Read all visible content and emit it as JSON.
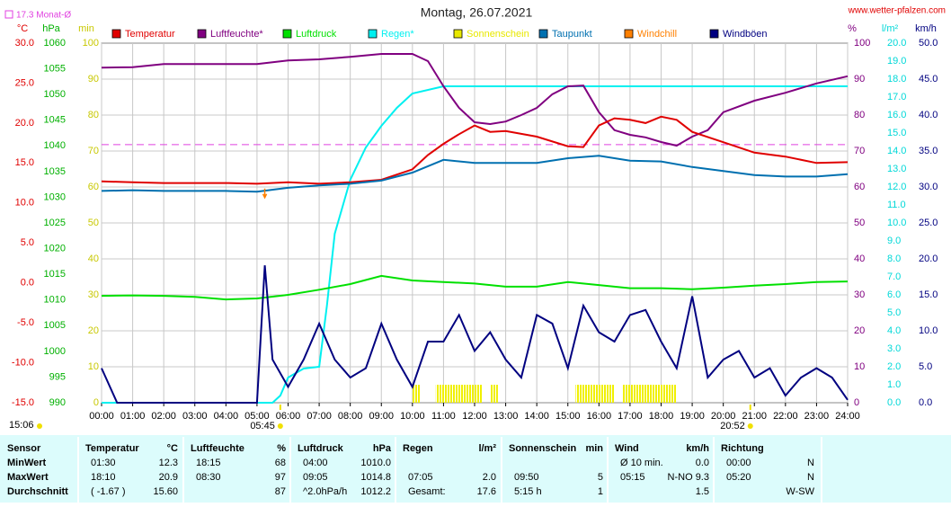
{
  "chart_data": {
    "type": "line",
    "title": "Montag, 26.07.2021",
    "source": "www.wetter-pfalzen.com",
    "xlim": [
      0,
      24
    ],
    "xticks": [
      {
        "value": 0,
        "label": "00:00"
      },
      {
        "value": 1,
        "label": "01:00"
      },
      {
        "value": 2,
        "label": "02:00"
      },
      {
        "value": 3,
        "label": "03:00"
      },
      {
        "value": 4,
        "label": "04:00"
      },
      {
        "value": 5,
        "label": "05:00"
      },
      {
        "value": 6,
        "label": "06:00"
      },
      {
        "value": 7,
        "label": "07:00"
      },
      {
        "value": 8,
        "label": "08:00"
      },
      {
        "value": 9,
        "label": "09:00"
      },
      {
        "value": 10,
        "label": "10:00"
      },
      {
        "value": 11,
        "label": "11:00"
      },
      {
        "value": 12,
        "label": "12:00"
      },
      {
        "value": 13,
        "label": "13:00"
      },
      {
        "value": 14,
        "label": "14:00"
      },
      {
        "value": 15,
        "label": "15:00"
      },
      {
        "value": 16,
        "label": "16:00"
      },
      {
        "value": 17,
        "label": "17:00"
      },
      {
        "value": 18,
        "label": "18:00"
      },
      {
        "value": 19,
        "label": "19:00"
      },
      {
        "value": 20,
        "label": "20:00"
      },
      {
        "value": 21,
        "label": "21:00"
      },
      {
        "value": 22,
        "label": "22:00"
      },
      {
        "value": 23,
        "label": "23:00"
      },
      {
        "value": 24,
        "label": "24:00"
      }
    ],
    "axes": [
      {
        "unit": "°C",
        "color": "#e00000",
        "lim": [
          -15,
          30
        ],
        "ticks": [
          {
            "value": 30,
            "label": "30.0"
          },
          {
            "value": 25,
            "label": "25.0"
          },
          {
            "value": 20,
            "label": "20.0"
          },
          {
            "value": 15,
            "label": "15.0"
          },
          {
            "value": 10,
            "label": "10.0"
          },
          {
            "value": 5,
            "label": "5.0"
          },
          {
            "value": 0,
            "label": "0.0"
          },
          {
            "value": -5,
            "label": "-5.0"
          },
          {
            "value": -10,
            "label": "-10.0"
          },
          {
            "value": -15,
            "label": "-15.0"
          }
        ]
      },
      {
        "unit": "hPa",
        "color": "#00b000",
        "lim": [
          990,
          1060
        ],
        "ticks": [
          990,
          995,
          1000,
          1005,
          1010,
          1015,
          1020,
          1025,
          1030,
          1035,
          1040,
          1045,
          1050,
          1055,
          1060
        ]
      },
      {
        "unit": "min",
        "color": "#c8c800",
        "lim": [
          0,
          100
        ],
        "ticks": [
          0,
          10,
          20,
          30,
          40,
          50,
          60,
          70,
          80,
          90,
          100
        ]
      },
      {
        "unit": "%",
        "color": "#800080",
        "lim": [
          0,
          100
        ],
        "ticks": [
          0,
          10,
          20,
          30,
          40,
          50,
          60,
          70,
          80,
          90,
          100
        ]
      },
      {
        "unit": "l/m²",
        "color": "#00d8d8",
        "lim": [
          0,
          20
        ],
        "ticks": [
          {
            "value": 0,
            "label": "0.0"
          },
          {
            "value": 1,
            "label": "1.0"
          },
          {
            "value": 2,
            "label": "2.0"
          },
          {
            "value": 3,
            "label": "3.0"
          },
          {
            "value": 4,
            "label": "4.0"
          },
          {
            "value": 5,
            "label": "5.0"
          },
          {
            "value": 6,
            "label": "6.0"
          },
          {
            "value": 7,
            "label": "7.0"
          },
          {
            "value": 8,
            "label": "8.0"
          },
          {
            "value": 9,
            "label": "9.0"
          },
          {
            "value": 10,
            "label": "10.0"
          },
          {
            "value": 11,
            "label": "11.0"
          },
          {
            "value": 12,
            "label": "12.0"
          },
          {
            "value": 13,
            "label": "13.0"
          },
          {
            "value": 14,
            "label": "14.0"
          },
          {
            "value": 15,
            "label": "15.0"
          },
          {
            "value": 16,
            "label": "16.0"
          },
          {
            "value": 17,
            "label": "17.0"
          },
          {
            "value": 18,
            "label": "18.0"
          },
          {
            "value": 19,
            "label": "19.0"
          },
          {
            "value": 20,
            "label": "20.0"
          }
        ]
      },
      {
        "unit": "km/h",
        "color": "#000080",
        "lim": [
          0,
          50
        ],
        "ticks": [
          {
            "value": 0,
            "label": "0.0"
          },
          {
            "value": 5,
            "label": "5.0"
          },
          {
            "value": 10,
            "label": "10.0"
          },
          {
            "value": 15,
            "label": "15.0"
          },
          {
            "value": 20,
            "label": "20.0"
          },
          {
            "value": 25,
            "label": "25.0"
          },
          {
            "value": 30,
            "label": "30.0"
          },
          {
            "value": 35,
            "label": "35.0"
          },
          {
            "value": 40,
            "label": "40.0"
          },
          {
            "value": 45,
            "label": "45.0"
          },
          {
            "value": 50,
            "label": "50.0"
          }
        ]
      }
    ],
    "grid": true,
    "monthly_mean": {
      "value": 17.3,
      "label": "17.3 Monat-Ø",
      "color": "#e040e0",
      "axis": 0
    },
    "series": [
      {
        "name": "Temperatur",
        "color": "#e00000",
        "type": "line",
        "axis": 0,
        "x": [
          0,
          1,
          2,
          3,
          4,
          5,
          6,
          7,
          8,
          9,
          10,
          10.5,
          11,
          11.5,
          12,
          12.5,
          13,
          14,
          15,
          15.5,
          16,
          16.5,
          17,
          17.5,
          18,
          18.5,
          19,
          20,
          21,
          22,
          23,
          24
        ],
        "values": [
          12.7,
          12.6,
          12.5,
          12.5,
          12.5,
          12.4,
          12.6,
          12.4,
          12.6,
          12.9,
          14.2,
          16.0,
          17.4,
          18.6,
          19.7,
          18.9,
          19.0,
          18.3,
          17.1,
          17.0,
          19.7,
          20.6,
          20.4,
          20.0,
          20.8,
          20.4,
          18.9,
          17.6,
          16.3,
          15.8,
          15.0,
          15.1
        ]
      },
      {
        "name": "Luftfeuchte*",
        "color": "#800080",
        "type": "line",
        "axis": 3,
        "x": [
          0,
          1,
          2,
          3,
          4,
          5,
          6,
          7,
          8,
          9,
          10,
          10.5,
          11,
          11.5,
          12,
          12.5,
          13,
          13.5,
          14,
          14.5,
          15,
          15.5,
          16,
          16.5,
          17,
          17.5,
          18,
          18.5,
          19,
          19.5,
          20,
          21,
          22,
          23,
          24
        ],
        "values": [
          93.2,
          93.3,
          94.2,
          94.2,
          94.2,
          94.2,
          95.2,
          95.5,
          96.2,
          97,
          97,
          95,
          88,
          82,
          78,
          77.5,
          78.2,
          80,
          82,
          85.8,
          88,
          88.2,
          80.8,
          75.8,
          74.5,
          73.8,
          72.5,
          71.5,
          74,
          75.8,
          80.8,
          84,
          86.2,
          88.8,
          90.8
        ]
      },
      {
        "name": "Luftdruck",
        "color": "#00e000",
        "type": "line",
        "axis": 1,
        "x": [
          0,
          1,
          2,
          3,
          4,
          5,
          6,
          7,
          8,
          9,
          10,
          11,
          12,
          13,
          14,
          15,
          16,
          17,
          18,
          19,
          20,
          21,
          22,
          23,
          24
        ],
        "values": [
          1010.8,
          1010.9,
          1010.8,
          1010.6,
          1010.1,
          1010.3,
          1011,
          1012,
          1013.1,
          1014.7,
          1013.8,
          1013.5,
          1013.2,
          1012.6,
          1012.6,
          1013.5,
          1012.9,
          1012.3,
          1012.3,
          1012.1,
          1012.4,
          1012.8,
          1013.1,
          1013.5,
          1013.6
        ]
      },
      {
        "name": "Regen*",
        "color": "#00f0f0",
        "type": "line",
        "axis": 4,
        "x": [
          0,
          5.5,
          5.75,
          6,
          6.5,
          7,
          7.25,
          7.5,
          8,
          8.5,
          9,
          9.5,
          10,
          11,
          24
        ],
        "values": [
          0,
          0,
          0.4,
          1.4,
          1.9,
          2.0,
          5.4,
          9.4,
          12.4,
          14.2,
          15.4,
          16.4,
          17.2,
          17.6,
          17.6
        ]
      },
      {
        "name": "Sonnenschein",
        "color": "#e8e800",
        "type": "bar",
        "axis": 2,
        "x": [
          10.0,
          10.75,
          12.5,
          15.25,
          16.75
        ],
        "x_end": [
          10.25,
          12.25,
          12.75,
          16.5,
          18.5
        ],
        "values": [
          5,
          5,
          5,
          5,
          5
        ]
      },
      {
        "name": "Taupunkt",
        "color": "#0070b0",
        "type": "line",
        "axis": 0,
        "x": [
          0,
          1,
          2,
          3,
          4,
          5,
          6,
          7,
          8,
          9,
          10,
          11,
          12,
          13,
          14,
          15,
          16,
          17,
          18,
          19,
          20,
          21,
          22,
          23,
          24
        ],
        "values": [
          11.5,
          11.6,
          11.5,
          11.5,
          11.5,
          11.4,
          11.9,
          12.2,
          12.4,
          12.8,
          13.8,
          15.4,
          15.0,
          15.0,
          15.0,
          15.6,
          15.9,
          15.3,
          15.2,
          14.5,
          14.0,
          13.5,
          13.3,
          13.3,
          13.6
        ]
      },
      {
        "name": "Windchill",
        "color": "#ff8000",
        "type": "point",
        "axis": 0,
        "x": [
          5.25
        ],
        "values": [
          11.8
        ]
      },
      {
        "name": "Windböen",
        "color": "#000080",
        "type": "line",
        "axis": 5,
        "x": [
          0,
          0.5,
          1,
          1.5,
          2,
          2.5,
          3,
          3.5,
          4,
          4.5,
          5,
          5.25,
          5.5,
          6,
          6.5,
          7,
          7.5,
          8,
          8.5,
          9,
          9.5,
          10,
          10.5,
          11,
          11.5,
          12,
          12.5,
          13,
          13.5,
          14,
          14.5,
          15,
          15.5,
          16,
          16.5,
          17,
          17.5,
          18,
          18.5,
          19,
          19.5,
          20,
          20.5,
          21,
          21.5,
          22,
          22.5,
          23,
          23.5,
          24
        ],
        "values": [
          4.8,
          0,
          0,
          0,
          0,
          0,
          0,
          0,
          0,
          0,
          0,
          19.1,
          6,
          2.2,
          6,
          11,
          6,
          3.5,
          4.8,
          11,
          6,
          2.2,
          8.5,
          8.5,
          12.2,
          7.2,
          9.8,
          6,
          3.5,
          12.2,
          11,
          4.8,
          13.5,
          9.8,
          8.5,
          12.2,
          12.9,
          8.5,
          4.8,
          14.8,
          3.5,
          6,
          7.2,
          3.5,
          4.8,
          1,
          3.5,
          4.8,
          3.5,
          0.4
        ]
      }
    ],
    "sun": {
      "color": "#f0e000",
      "sunrise": {
        "value": 5.75,
        "label": "05:45"
      },
      "sunset": {
        "value": 20.87,
        "label": "20:52"
      },
      "day_length": "15:06"
    }
  },
  "table": {
    "header": "Sensor",
    "groups": [
      {
        "name": "Temperatur",
        "unit": "°C"
      },
      {
        "name": "Luftfeuchte",
        "unit": "%"
      },
      {
        "name": "Luftdruck",
        "unit": "hPa"
      },
      {
        "name": "Regen",
        "unit": "l/m²"
      },
      {
        "name": "Sonnenschein",
        "unit": "min"
      },
      {
        "name": "Wind",
        "unit": "km/h"
      },
      {
        "name": "Richtung",
        "unit": null
      }
    ],
    "rows": [
      {
        "label": "MinWert",
        "cells": [
          [
            "01:30",
            "12.3"
          ],
          [
            "18:15",
            "68"
          ],
          [
            "04:00",
            "1010.0"
          ],
          [
            null,
            null
          ],
          [
            null,
            null
          ],
          [
            "Ø 10 min.",
            "0.0"
          ],
          [
            "00:00",
            "N"
          ]
        ]
      },
      {
        "label": "MaxWert",
        "cells": [
          [
            "18:10",
            "20.9"
          ],
          [
            "08:30",
            "97"
          ],
          [
            "09:05",
            "1014.8"
          ],
          [
            "07:05",
            "2.0"
          ],
          [
            "09:50",
            "5"
          ],
          [
            "05:15",
            "N-NO 9.3"
          ],
          [
            "05:20",
            "N"
          ]
        ]
      },
      {
        "label": "Durchschnitt",
        "cells": [
          [
            "( -1.67 )",
            "15.60"
          ],
          [
            null,
            "87"
          ],
          [
            "^2.0hPa/h",
            "1012.2"
          ],
          [
            "Gesamt:",
            "17.6"
          ],
          [
            "5:15 h",
            "1"
          ],
          [
            null,
            "1.5"
          ],
          [
            null,
            "W-SW"
          ]
        ]
      }
    ]
  }
}
